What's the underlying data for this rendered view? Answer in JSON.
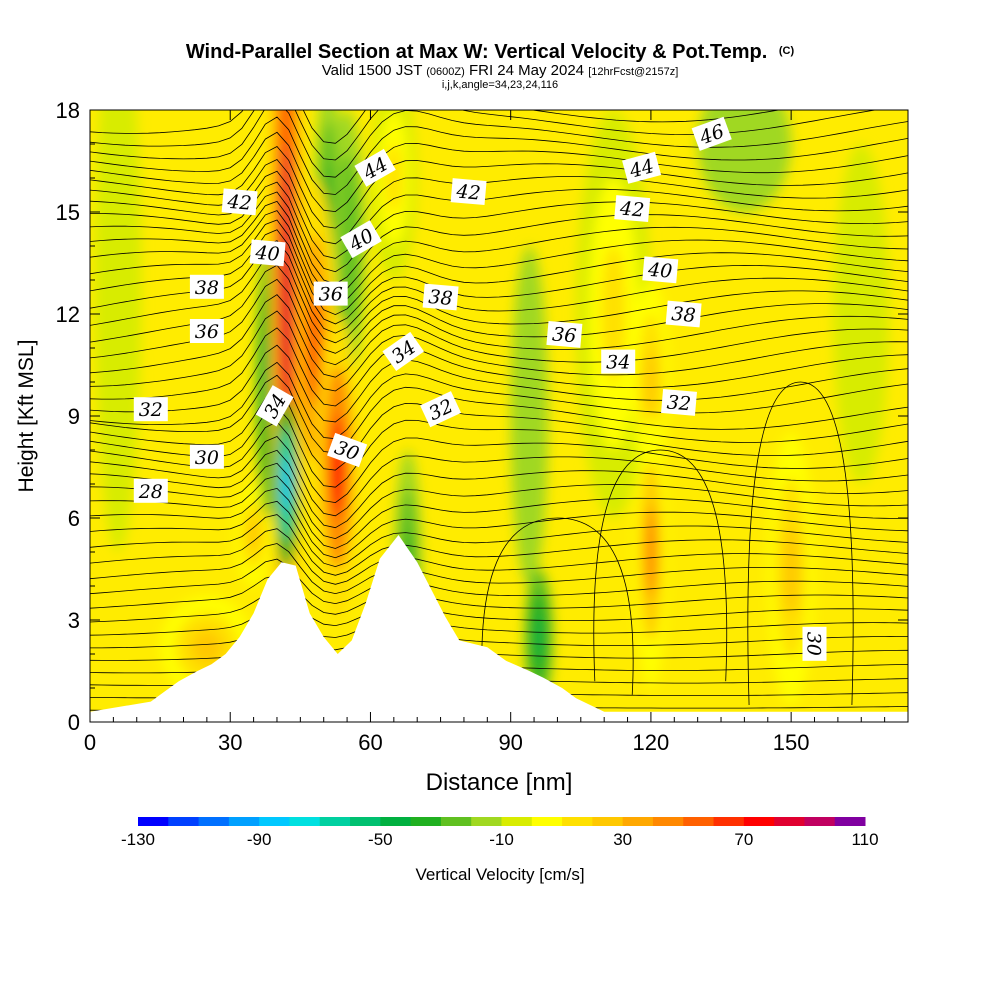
{
  "chart_data": {
    "type": "heatmap",
    "title": "Wind-Parallel Section at Max W: Vertical Velocity & Pot.Temp.",
    "title_mark": "(C)",
    "subtitle_parts": [
      "Valid 1500 JST ",
      "(0600Z)",
      " FRI 24 May 2024 ",
      "[12hrFcst@2157z]"
    ],
    "subtitle2": "i,j,k,angle=34,23,24,116",
    "xlabel": "Distance [nm]",
    "ylabel": "Height [Kft MSL]",
    "xlim": [
      0,
      175
    ],
    "ylim": [
      0,
      18
    ],
    "x_ticks": [
      "0",
      "30",
      "60",
      "90",
      "120",
      "150"
    ],
    "y_ticks": [
      "0",
      "3",
      "6",
      "9",
      "12",
      "15",
      "18"
    ],
    "colorbar_label": "Vertical Velocity [cm/s]",
    "colorbar_ticks": [
      "-130",
      "-90",
      "-50",
      "-10",
      "30",
      "70",
      "110"
    ],
    "colorbar_range": [
      -130,
      110
    ],
    "colorbar_colors": [
      "#0000ff",
      "#0040ff",
      "#0070ff",
      "#00a0ff",
      "#00c8ff",
      "#00e0e0",
      "#00d0a0",
      "#00c070",
      "#00b040",
      "#20b020",
      "#60c020",
      "#a0d820",
      "#d8ec00",
      "#ffff00",
      "#ffe000",
      "#ffc800",
      "#ffa800",
      "#ff8800",
      "#ff6000",
      "#ff3000",
      "#ff0000",
      "#e00030",
      "#c00060",
      "#8000a0"
    ],
    "terrain_profile": [
      [
        0,
        0.3
      ],
      [
        13,
        0.6
      ],
      [
        16,
        0.9
      ],
      [
        19,
        1.2
      ],
      [
        23,
        1.5
      ],
      [
        26,
        1.7
      ],
      [
        29,
        2.0
      ],
      [
        32,
        2.5
      ],
      [
        35,
        3.2
      ],
      [
        38,
        4.2
      ],
      [
        41,
        4.7
      ],
      [
        44,
        4.6
      ],
      [
        47,
        3.2
      ],
      [
        50,
        2.5
      ],
      [
        53,
        2.0
      ],
      [
        56,
        2.4
      ],
      [
        59,
        3.5
      ],
      [
        62,
        4.8
      ],
      [
        66,
        5.5
      ],
      [
        70,
        4.7
      ],
      [
        73,
        3.9
      ],
      [
        76,
        3.1
      ],
      [
        79,
        2.4
      ],
      [
        85,
        2.2
      ],
      [
        89,
        1.8
      ],
      [
        94,
        1.5
      ],
      [
        97,
        1.3
      ],
      [
        101,
        1.0
      ],
      [
        104,
        0.7
      ],
      [
        110,
        0.3
      ],
      [
        175,
        0.3
      ]
    ],
    "w_field": [
      {
        "x": 42,
        "z": 13,
        "w": 80,
        "rx": 3.5,
        "rz": 12
      },
      {
        "x": 53,
        "z": 7.5,
        "w": 75,
        "rx": 4.5,
        "rz": 4.5
      },
      {
        "x": 48,
        "z": 11,
        "w": 50,
        "rx": 5,
        "rz": 5
      },
      {
        "x": 38,
        "z": 10,
        "w": -45,
        "rx": 2.5,
        "rz": 4
      },
      {
        "x": 42,
        "z": 7,
        "w": -90,
        "rx": 2.5,
        "rz": 2.5
      },
      {
        "x": 51,
        "z": 15,
        "w": -40,
        "rx": 3,
        "rz": 4
      },
      {
        "x": 55,
        "z": 14,
        "w": -30,
        "rx": 4,
        "rz": 4
      },
      {
        "x": 68,
        "z": 4.5,
        "w": -35,
        "rx": 3,
        "rz": 3.5
      },
      {
        "x": 96,
        "z": 2.5,
        "w": -45,
        "rx": 3,
        "rz": 2
      },
      {
        "x": 94,
        "z": 9,
        "w": -20,
        "rx": 4,
        "rz": 5
      },
      {
        "x": 120,
        "z": 5,
        "w": 45,
        "rx": 3.5,
        "rz": 4
      },
      {
        "x": 120,
        "z": 10,
        "w": 20,
        "rx": 4,
        "rz": 3
      },
      {
        "x": 150,
        "z": 4.5,
        "w": 25,
        "rx": 5,
        "rz": 4
      },
      {
        "x": 112,
        "z": 12,
        "w": 15,
        "rx": 8,
        "rz": 6
      },
      {
        "x": 25,
        "z": 2.2,
        "w": 20,
        "rx": 10,
        "rz": 1.5
      },
      {
        "x": 35,
        "z": 5.5,
        "w": 25,
        "rx": 4,
        "rz": 1.5
      },
      {
        "x": 6,
        "z": 13,
        "w": -5,
        "rx": 5,
        "rz": 8
      },
      {
        "x": 140,
        "z": 17,
        "w": -20,
        "rx": 10,
        "rz": 2
      },
      {
        "x": 165,
        "z": 12,
        "w": -8,
        "rx": 6,
        "rz": 5
      },
      {
        "x": 65,
        "z": 16,
        "w": 15,
        "rx": 5,
        "rz": 3
      }
    ],
    "theta_labels": [
      {
        "text": "42",
        "x": 32,
        "z": 15.3,
        "rot": -5
      },
      {
        "text": "40",
        "x": 38,
        "z": 13.8,
        "rot": -5
      },
      {
        "text": "38",
        "x": 25,
        "z": 12.8,
        "rot": 0
      },
      {
        "text": "36",
        "x": 25,
        "z": 11.5,
        "rot": 0
      },
      {
        "text": "32",
        "x": 13,
        "z": 9.2,
        "rot": 0
      },
      {
        "text": "30",
        "x": 25,
        "z": 7.8,
        "rot": 0
      },
      {
        "text": "28",
        "x": 13,
        "z": 6.8,
        "rot": 0
      },
      {
        "text": "34",
        "x": 39.5,
        "z": 9.3,
        "rot": 60
      },
      {
        "text": "36",
        "x": 51.5,
        "z": 12.6,
        "rot": 0
      },
      {
        "text": "30",
        "x": 55,
        "z": 8.0,
        "rot": -20
      },
      {
        "text": "44",
        "x": 61,
        "z": 16.3,
        "rot": 30
      },
      {
        "text": "40",
        "x": 58,
        "z": 14.2,
        "rot": 30
      },
      {
        "text": "34",
        "x": 67,
        "z": 10.9,
        "rot": 35
      },
      {
        "text": "32",
        "x": 75,
        "z": 9.2,
        "rot": 25
      },
      {
        "text": "38",
        "x": 75,
        "z": 12.5,
        "rot": -5
      },
      {
        "text": "42",
        "x": 81,
        "z": 15.6,
        "rot": -5
      },
      {
        "text": "36",
        "x": 101.5,
        "z": 11.4,
        "rot": -5
      },
      {
        "text": "34",
        "x": 113,
        "z": 10.6,
        "rot": 0
      },
      {
        "text": "32",
        "x": 126,
        "z": 9.4,
        "rot": -5
      },
      {
        "text": "38",
        "x": 127,
        "z": 12.0,
        "rot": -5
      },
      {
        "text": "40",
        "x": 122,
        "z": 13.3,
        "rot": -5
      },
      {
        "text": "42",
        "x": 116,
        "z": 15.1,
        "rot": -5
      },
      {
        "text": "44",
        "x": 118,
        "z": 16.3,
        "rot": 15
      },
      {
        "text": "46",
        "x": 133,
        "z": 17.3,
        "rot": 20
      },
      {
        "text": "30",
        "x": 155,
        "z": 2.3,
        "rot": -90
      }
    ]
  }
}
